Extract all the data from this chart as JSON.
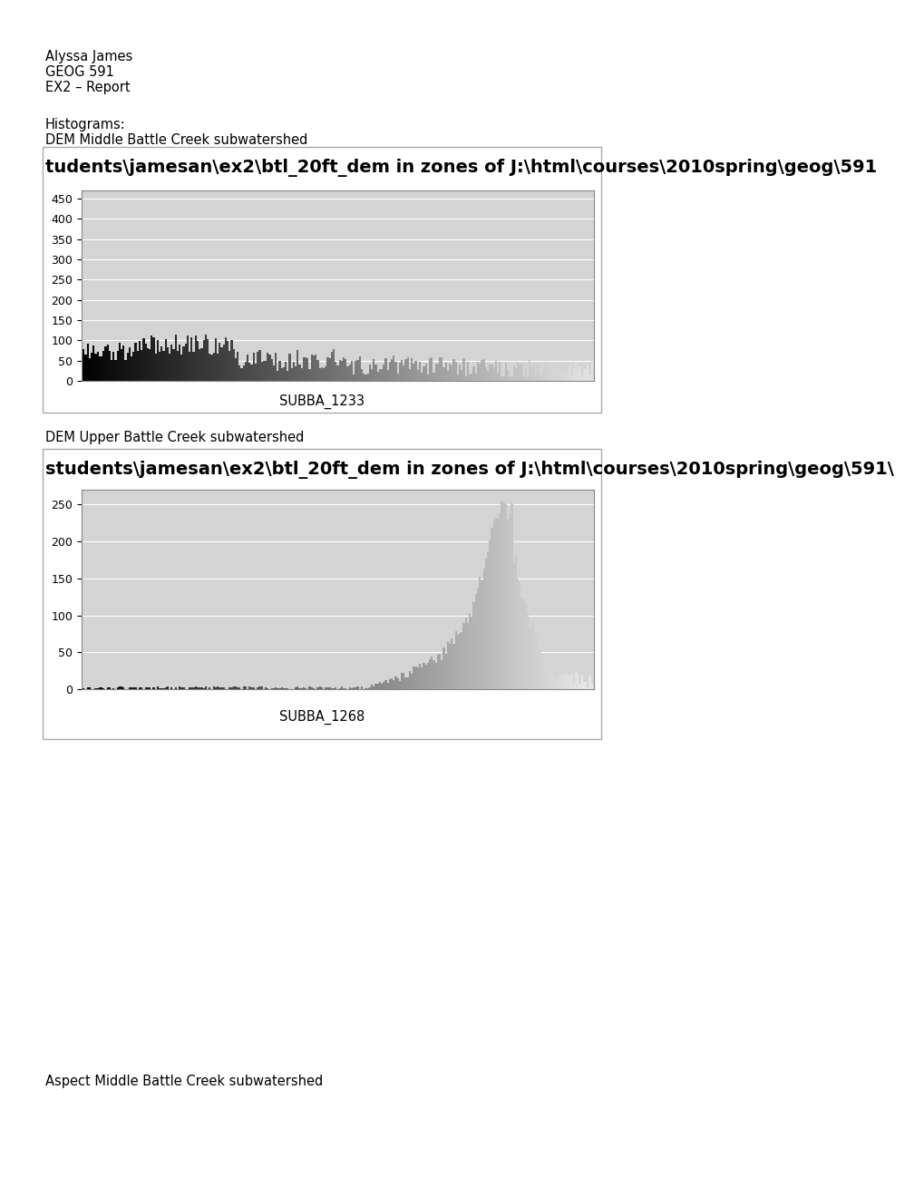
{
  "header_line1": "Alyssa James",
  "header_line2": "GEOG 591",
  "header_line3": "EX2 – Report",
  "section1_label": "Histograms:",
  "chart1_label": "DEM Middle Battle Creek subwatershed",
  "chart1_title": "tudents\\jamesan\\ex2\\btl_20ft_dem in zones of J:\\html\\courses\\2010spring\\geog\\591",
  "chart1_xlabel": "SUBBA_1233",
  "chart1_ylim": [
    0,
    470
  ],
  "chart1_yticks": [
    0,
    50,
    100,
    150,
    200,
    250,
    300,
    350,
    400,
    450
  ],
  "chart1_n_bars": 256,
  "chart2_label": "DEM Upper Battle Creek subwatershed",
  "chart2_title": "students\\jamesan\\ex2\\btl_20ft_dem in zones of J:\\html\\courses\\2010spring\\geog\\591\\",
  "chart2_xlabel": "SUBBA_1268",
  "chart2_ylim": [
    0,
    270
  ],
  "chart2_yticks": [
    0,
    50,
    100,
    150,
    200,
    250
  ],
  "chart2_n_bars": 256,
  "section2_label": "Aspect Middle Battle Creek subwatershed",
  "bg_color": "#ffffff",
  "plot_bg_color": "#d4d4d4",
  "header_fontsize": 10.5,
  "label_fontsize": 10.5,
  "chart_title_fontsize": 14,
  "tick_fontsize": 9
}
